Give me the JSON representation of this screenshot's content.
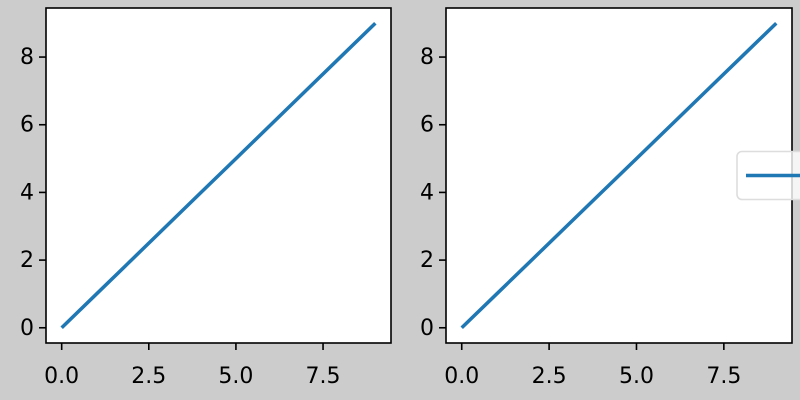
{
  "chart_data": [
    {
      "type": "line",
      "x": [
        0,
        1,
        2,
        3,
        4,
        5,
        6,
        7,
        8,
        9
      ],
      "series": [
        {
          "color": "#1f77b4",
          "values": [
            0,
            1,
            2,
            3,
            4,
            5,
            6,
            7,
            8,
            9
          ]
        }
      ],
      "xlim": [
        -0.45,
        9.45
      ],
      "ylim": [
        -0.45,
        9.45
      ],
      "xticks": [
        {
          "value": 0,
          "label": "0.0"
        },
        {
          "value": 2.5,
          "label": "2.5"
        },
        {
          "value": 5,
          "label": "5.0"
        },
        {
          "value": 7.5,
          "label": "7.5"
        }
      ],
      "yticks": [
        0,
        2,
        4,
        6,
        8
      ],
      "grid": false
    },
    {
      "type": "line",
      "x": [
        0,
        1,
        2,
        3,
        4,
        5,
        6,
        7,
        8,
        9
      ],
      "series": [
        {
          "color": "#1f77b4",
          "values": [
            0,
            1,
            2,
            3,
            4,
            5,
            6,
            7,
            8,
            9
          ]
        }
      ],
      "xlim": [
        -0.45,
        9.45
      ],
      "ylim": [
        -0.45,
        9.45
      ],
      "xticks": [
        {
          "value": 0,
          "label": "0.0"
        },
        {
          "value": 2.5,
          "label": "2.5"
        },
        {
          "value": 5,
          "label": "5.0"
        },
        {
          "value": 7.5,
          "label": "7.5"
        }
      ],
      "yticks": [
        0,
        2,
        4,
        6,
        8
      ],
      "grid": false,
      "legend": "center right"
    }
  ]
}
